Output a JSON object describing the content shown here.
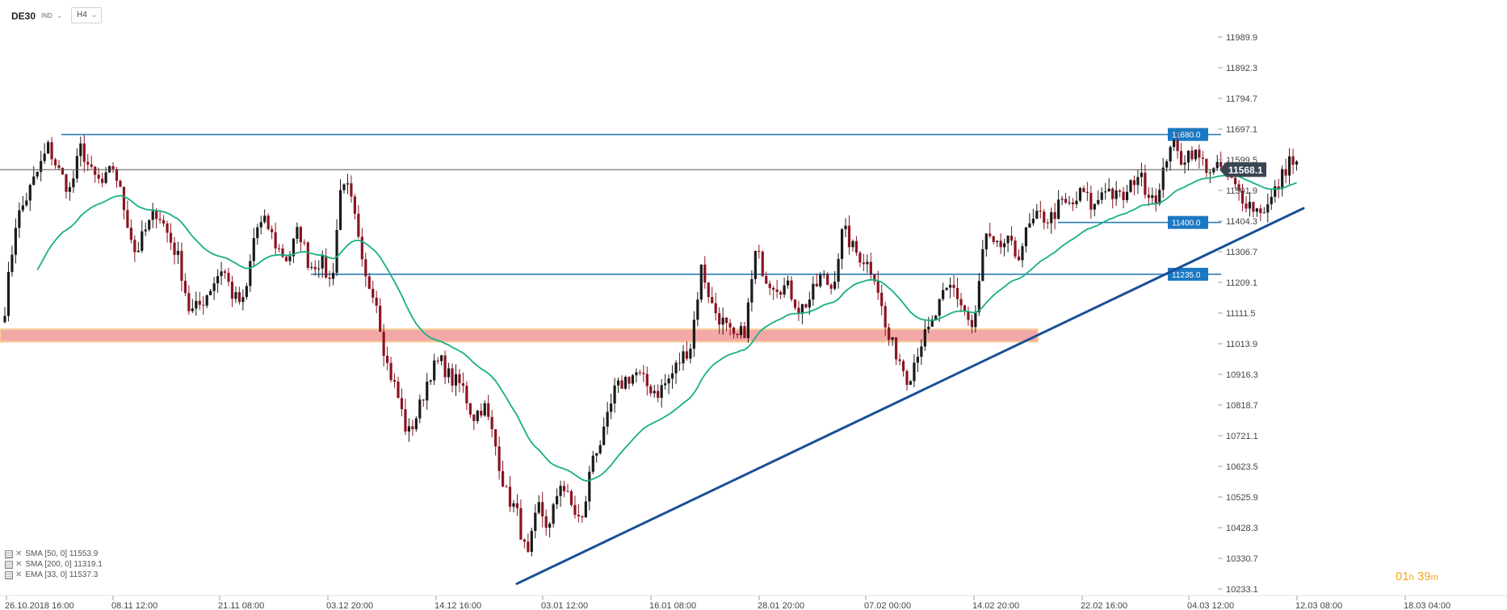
{
  "header": {
    "symbol": "DE30",
    "instrument_type": "IND",
    "timeframe": "H4"
  },
  "indicators": [
    {
      "label": "SMA [50, 0] 11553.9"
    },
    {
      "label": "SMA [200, 0] 11319.1"
    },
    {
      "label": "EMA [33, 0] 11537.3"
    }
  ],
  "timer": {
    "hours": "01",
    "h_unit": "h",
    "minutes": "39",
    "m_unit": "m"
  },
  "colors": {
    "up": "#1a1a1a",
    "down": "#8a1420",
    "ema": "#17b082",
    "level": "#2a7fb8",
    "trend": "#1a4f96",
    "zone": "#f19a9a",
    "price_tag": "#3a4452"
  },
  "chart_data": {
    "type": "candlestick",
    "symbol": "DE30",
    "timeframe": "H4",
    "y_ticks": [
      11989.9,
      11892.3,
      11794.7,
      11697.1,
      11599.5,
      11501.9,
      11404.3,
      11306.7,
      11209.1,
      11111.5,
      11013.9,
      10916.3,
      10818.7,
      10721.1,
      10623.5,
      10525.9,
      10428.3,
      10330.7,
      10233.1
    ],
    "y_tick_labels": [
      "11989.9",
      "11892.3",
      "11794.7",
      "11697.1",
      "11599.5",
      "11501.9",
      "11404.3",
      "11306.7",
      "11209.1",
      "11111.5",
      "11013.9",
      "10916.3",
      "10818.7",
      "10721.1",
      "10623.5",
      "10525.9",
      "10428.3",
      "10330.7",
      "10233.1"
    ],
    "x_tick_labels": [
      "26.10.2018 16:00",
      "08.11 12:00",
      "21.11 08:00",
      "03.12 20:00",
      "14.12 16:00",
      "03.01 12:00",
      "16.01 08:00",
      "28.01 20:00",
      "07.02 00:00",
      "14.02 20:00",
      "22.02 16:00",
      "04.03 12:00",
      "12.03 08:00",
      "18.03 04:00"
    ],
    "last_price": 11568.1,
    "last_price_label": "11568.1",
    "levels": [
      {
        "value": 11680.0,
        "label": "11680.0"
      },
      {
        "value": 11400.0,
        "label": "11400.0"
      },
      {
        "value": 11235.0,
        "label": "11235.0"
      }
    ],
    "zone": {
      "low": 11020,
      "high": 11060
    },
    "trendline": {
      "start": 10250,
      "end": 11445
    },
    "path": [
      11130,
      11400,
      11480,
      11560,
      11640,
      11560,
      11500,
      11640,
      11550,
      11520,
      11580,
      11440,
      11300,
      11380,
      11440,
      11360,
      11280,
      11110,
      11140,
      11200,
      11260,
      11160,
      11140,
      11380,
      11400,
      11320,
      11280,
      11380,
      11260,
      11280,
      11200,
      11560,
      11440,
      11220,
      11180,
      10960,
      10860,
      10720,
      10800,
      10920,
      10960,
      10900,
      10880,
      10780,
      10820,
      10700,
      10540,
      10480,
      10320,
      10500,
      10420,
      10580,
      10500,
      10440,
      10660,
      10720,
      10860,
      10900,
      10920,
      10880,
      10860,
      10900,
      10960,
      11010,
      11260,
      11130,
      11080,
      11020,
      11060,
      11310,
      11220,
      11200,
      11190,
      11120,
      11160,
      11230,
      11190,
      11380,
      11310,
      11280,
      11230,
      11040,
      10980,
      10900,
      11010,
      11060,
      11150,
      11200,
      11130,
      11050,
      11360,
      11310,
      11340,
      11290,
      11380,
      11420,
      11410,
      11460,
      11450,
      11500,
      11440,
      11520,
      11480,
      11480,
      11560,
      11500,
      11480,
      11660,
      11600,
      11630,
      11590,
      11560,
      11580,
      11510,
      11470,
      11440,
      11450,
      11520,
      11600,
      11568
    ]
  }
}
